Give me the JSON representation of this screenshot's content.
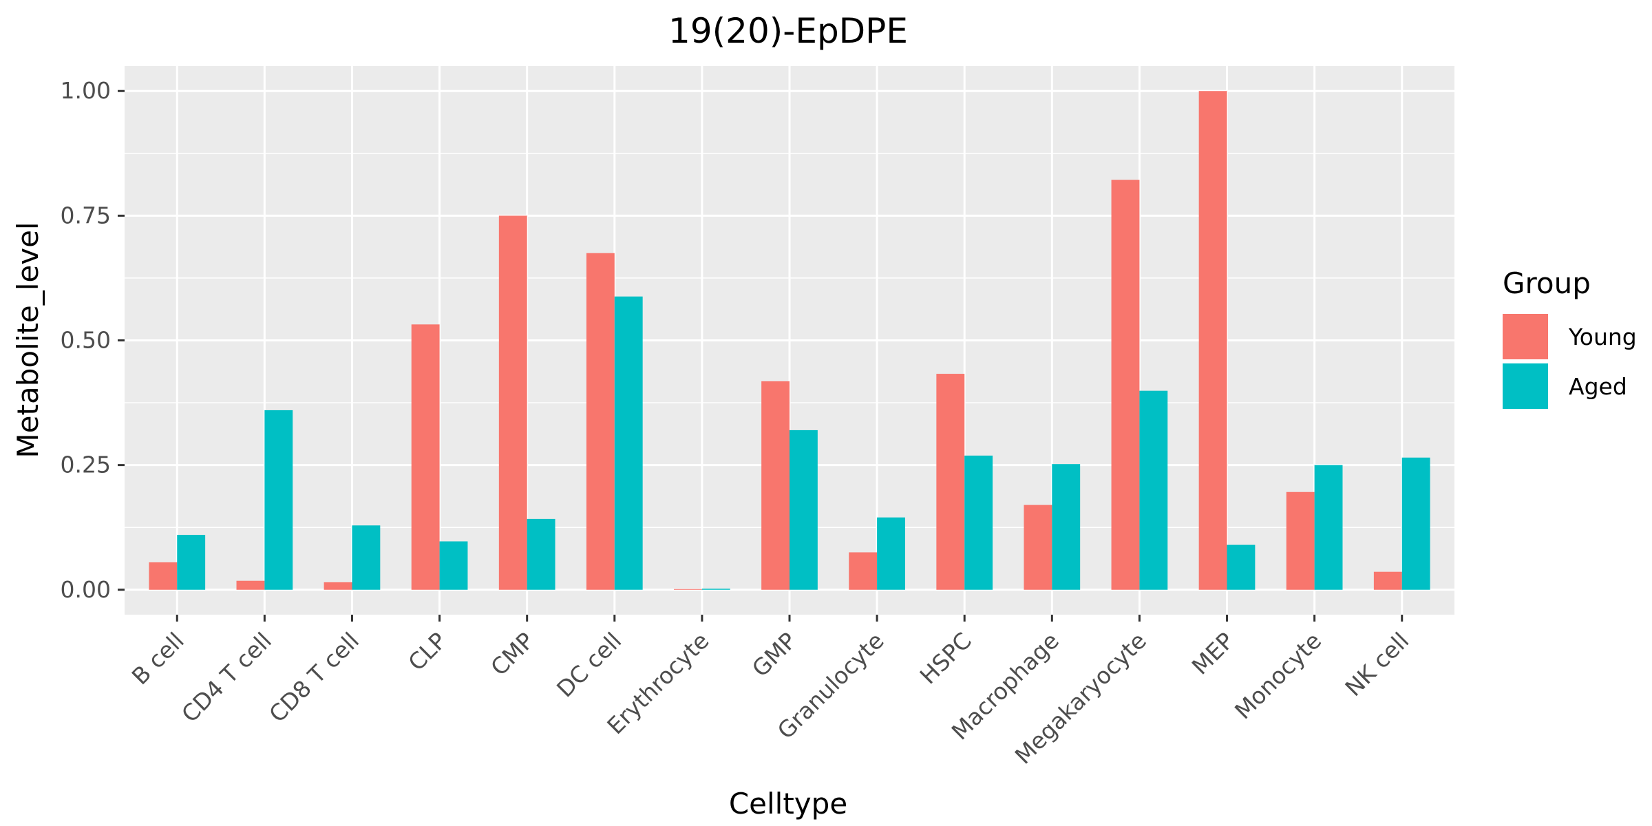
{
  "chart_data": {
    "type": "bar",
    "title": "19(20)-EpDPE",
    "xlabel": "Celltype",
    "ylabel": "Metabolite_level",
    "categories": [
      "B cell",
      "CD4 T cell",
      "CD8 T cell",
      "CLP",
      "CMP",
      "DC cell",
      "Erythrocyte",
      "GMP",
      "Granulocyte",
      "HSPC",
      "Macrophage",
      "Megakaryocyte",
      "MEP",
      "Monocyte",
      "NK cell"
    ],
    "series": [
      {
        "name": "Young",
        "color": "#F8766D",
        "values": [
          0.055,
          0.018,
          0.015,
          0.532,
          0.75,
          0.675,
          0.0,
          0.418,
          0.075,
          0.433,
          0.17,
          0.822,
          1.0,
          0.196,
          0.036
        ]
      },
      {
        "name": "Aged",
        "color": "#00BFC4",
        "values": [
          0.11,
          0.36,
          0.129,
          0.097,
          0.142,
          0.588,
          0.002,
          0.32,
          0.145,
          0.269,
          0.252,
          0.399,
          0.09,
          0.25,
          0.265
        ]
      }
    ],
    "ylim": [
      -0.05,
      1.05
    ],
    "yticks": [
      0.0,
      0.25,
      0.5,
      0.75,
      1.0
    ],
    "ytick_labels": [
      "0.00",
      "0.25",
      "0.50",
      "0.75",
      "1.00"
    ],
    "grid": true,
    "legend": {
      "title": "Group",
      "position": "right"
    },
    "panel_background": "#EBEBEB"
  }
}
